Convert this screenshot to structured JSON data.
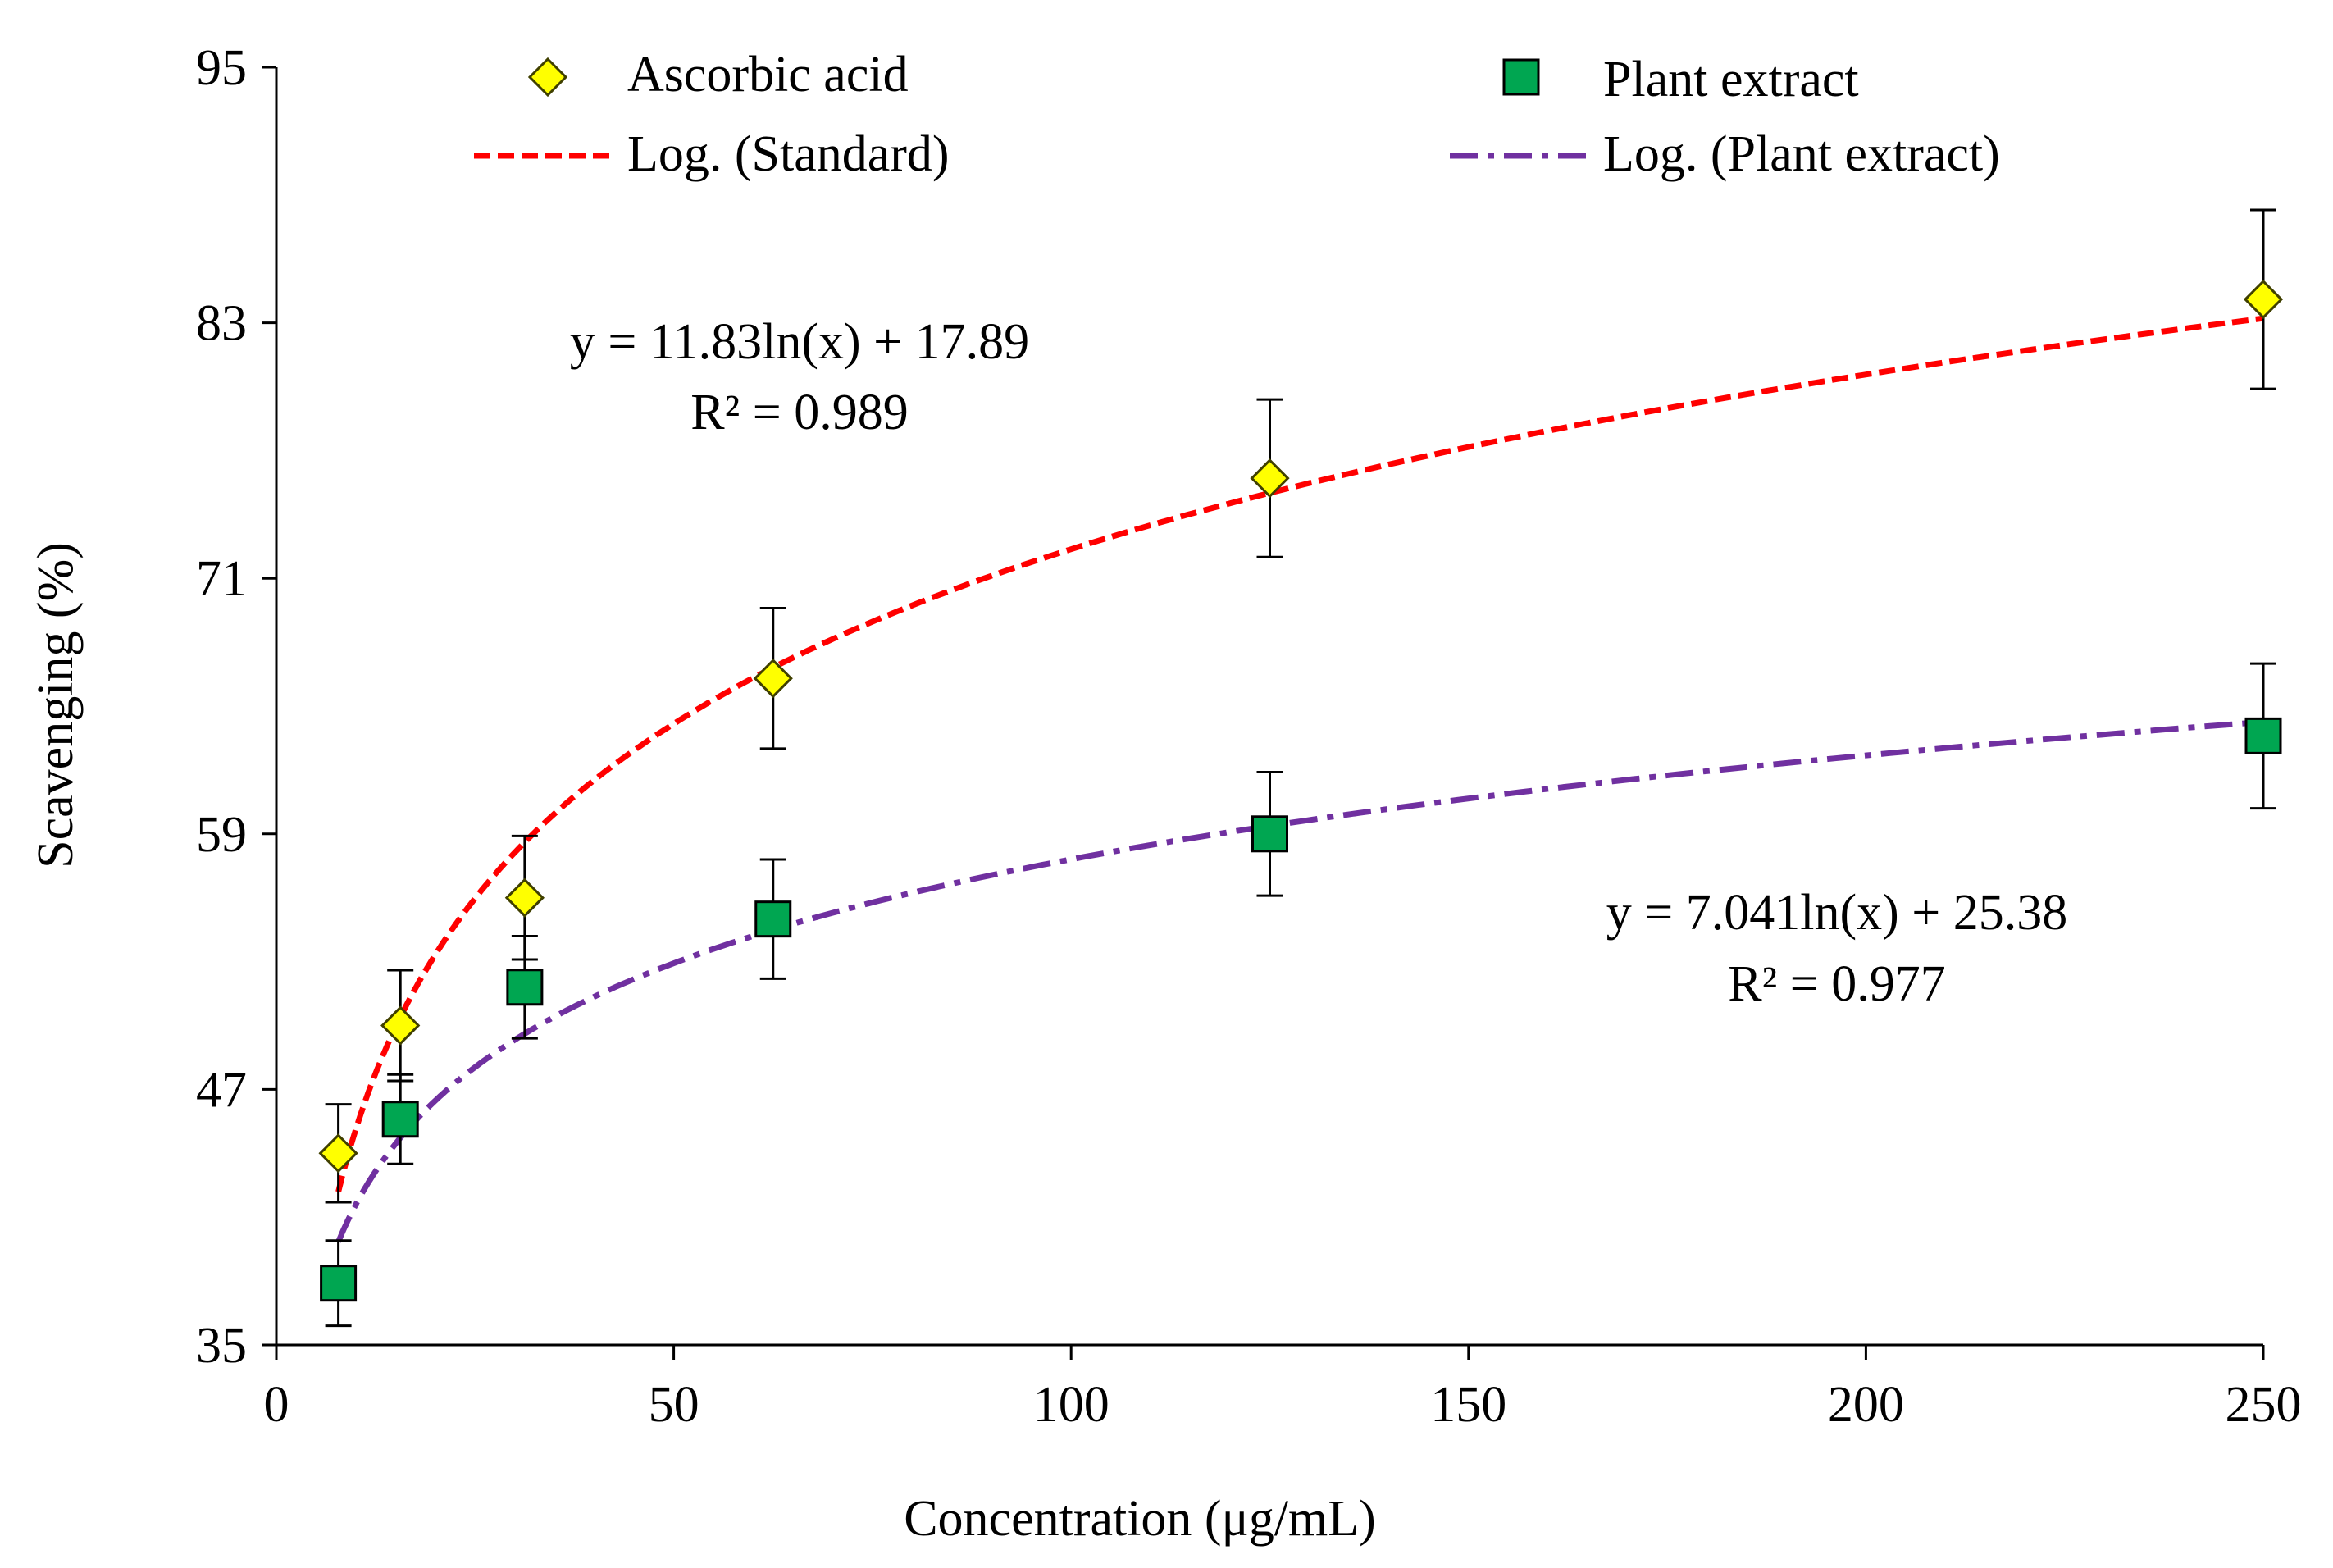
{
  "chart_data": {
    "type": "scatter",
    "xlabel": "Concentration  (μg/mL)",
    "ylabel": "Scavenging  (%)",
    "xlim": [
      0,
      250
    ],
    "ylim": [
      35,
      95
    ],
    "x_ticks": [
      0,
      50,
      100,
      150,
      200,
      250
    ],
    "y_ticks": [
      35,
      47,
      59,
      71,
      83,
      95
    ],
    "x_tick_labels": [
      "0",
      "50",
      "100",
      "150",
      "200",
      "250"
    ],
    "y_tick_labels": [
      "35",
      "47",
      "59",
      "71",
      "83",
      "95"
    ],
    "grid": false,
    "legend": {
      "placement": "top",
      "entries": [
        {
          "key": "ascorbic",
          "label": "Ascorbic acid",
          "kind": "marker"
        },
        {
          "key": "plant",
          "label": "Plant extract",
          "kind": "marker"
        },
        {
          "key": "log_standard",
          "label": "Log. (Standard)",
          "kind": "line"
        },
        {
          "key": "log_plant",
          "label": "Log. (Plant extract)",
          "kind": "line"
        }
      ]
    },
    "series": [
      {
        "name": "Ascorbic acid",
        "marker": "diamond",
        "color": "#FFFF00",
        "x": [
          7.8,
          15.6,
          31.25,
          62.5,
          125,
          250
        ],
        "values": [
          44.0,
          50.0,
          56.0,
          66.3,
          75.7,
          84.1
        ],
        "errors": [
          2.3,
          2.6,
          2.9,
          3.3,
          3.7,
          4.2
        ]
      },
      {
        "name": "Plant extract",
        "marker": "square",
        "color": "#00A651",
        "x": [
          7.8,
          15.6,
          31.25,
          62.5,
          125,
          250
        ],
        "values": [
          37.9,
          45.6,
          51.8,
          55.0,
          59.0,
          63.6
        ],
        "errors": [
          2.0,
          2.1,
          2.4,
          2.8,
          2.9,
          3.4
        ]
      }
    ],
    "trendlines": [
      {
        "name": "Log. (Standard)",
        "color": "#FF0000",
        "dash": "dash",
        "a": 11.83,
        "b": 17.89,
        "x_range": [
          7.8,
          250
        ],
        "equation": "y = 11.83ln(x)  + 17.89",
        "r2": "R² = 0.989"
      },
      {
        "name": "Log. (Plant extract)",
        "color": "#7030A0",
        "dash": "dashdot",
        "a": 7.041,
        "b": 25.38,
        "x_range": [
          7.8,
          250
        ],
        "equation": "y = 7.041ln(x)  + 25.38",
        "r2": "R² = 0.977"
      }
    ]
  }
}
